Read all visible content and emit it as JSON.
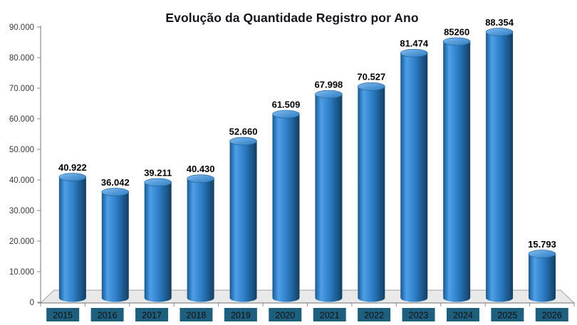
{
  "chart_data": {
    "type": "bar",
    "style": "3d-cylinder",
    "title": "Evolução da Quantidade Registro por Ano",
    "categories": [
      "2015",
      "2016",
      "2017",
      "2018",
      "2019",
      "2020",
      "2021",
      "2022",
      "2023",
      "2024",
      "2025",
      "2026"
    ],
    "values": [
      40922,
      36042,
      39211,
      40430,
      52660,
      61509,
      67998,
      70527,
      81474,
      85260,
      88354,
      15793
    ],
    "value_labels": [
      "40.922",
      "36.042",
      "39.211",
      "40.430",
      "52.660",
      "61.509",
      "67.998",
      "70.527",
      "81.474",
      "85260",
      "88.354",
      "15.793"
    ],
    "xlabel": "",
    "ylabel": "",
    "ylim": [
      0,
      90000
    ],
    "ytick_step": 10000,
    "ytick_labels": [
      "0",
      "10.000",
      "20.000",
      "30.000",
      "40.000",
      "50.000",
      "60.000",
      "70.000",
      "80.000",
      "90.000"
    ],
    "grid": false,
    "legend": false,
    "colors": {
      "bar_dark_left": "#1B5688",
      "bar_highlight": "#4E9FE6",
      "bar_mid": "#2B7CC5",
      "bar_dark_right": "#123F63",
      "bar_top_light": "#7FBCF2",
      "bar_top_dark": "#2E7CC1",
      "bar_top_rim": "#1B5A8F",
      "floor_fill": "#E9E9E9",
      "floor_edge": "#A3A3A3",
      "axis": "#8A8A8A",
      "x_label_bg": "#1F5F7E",
      "x_label_text": "#101010",
      "value_label": "#000000",
      "y_label": "#3A3A3A",
      "title": "#14141F",
      "background": "#FFFFFF"
    }
  }
}
